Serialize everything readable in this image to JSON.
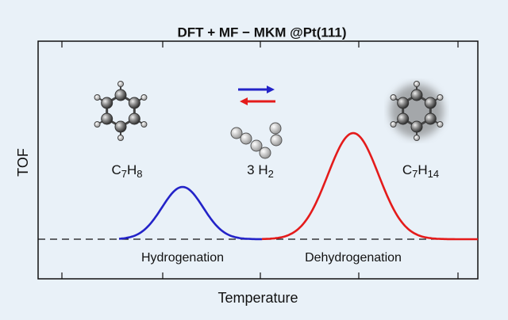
{
  "title": "DFT + MF − MKM @Pt(111)",
  "axes": {
    "y_label": "TOF",
    "x_label": "Temperature"
  },
  "molecules": [
    {
      "parts": [
        "C",
        "7",
        "H",
        "8"
      ]
    },
    {
      "parts": [
        "3 H",
        "2"
      ]
    },
    {
      "parts": [
        "C",
        "7",
        "H",
        "14"
      ]
    }
  ],
  "regions": [
    "Hydrogenation",
    "Dehydrogenation"
  ]
}
